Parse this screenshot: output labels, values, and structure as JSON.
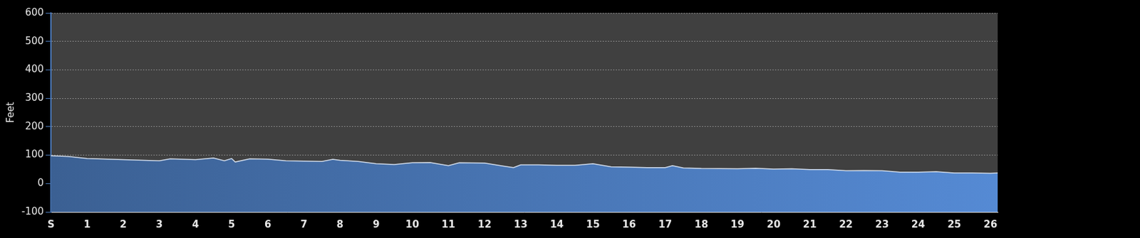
{
  "chart_data": {
    "type": "area",
    "y_label": "Feet",
    "x": [
      0,
      0.5,
      1,
      2,
      3,
      3.3,
      4,
      4.5,
      4.8,
      5,
      5.1,
      5.5,
      6,
      6.5,
      7,
      7.5,
      7.8,
      8,
      8.5,
      9,
      9.5,
      10,
      10.5,
      11,
      11.3,
      12,
      12.5,
      12.8,
      13,
      13.5,
      14,
      14.5,
      15,
      15.5,
      16,
      16.5,
      17,
      17.2,
      17.5,
      18,
      19,
      19.5,
      20,
      20.5,
      21,
      21.5,
      22,
      22.5,
      23,
      23.5,
      24,
      24.5,
      25,
      25.5,
      26,
      26.2
    ],
    "values": [
      98,
      95,
      88,
      84,
      80,
      87,
      84,
      90,
      80,
      88,
      76,
      87,
      86,
      80,
      79,
      78,
      85,
      82,
      78,
      70,
      67,
      73,
      74,
      63,
      73,
      72,
      62,
      56,
      66,
      66,
      64,
      64,
      70,
      59,
      58,
      56,
      56,
      63,
      55,
      53,
      52,
      54,
      51,
      52,
      49,
      49,
      45,
      46,
      45,
      40,
      40,
      42,
      37,
      37,
      36,
      37
    ],
    "color": "#4a78b8",
    "xlim": [
      0,
      26.2
    ],
    "xticks": [
      {
        "value": 0,
        "label": "S"
      },
      1,
      2,
      3,
      4,
      5,
      6,
      7,
      8,
      9,
      10,
      11,
      12,
      13,
      14,
      15,
      16,
      17,
      18,
      19,
      20,
      21,
      22,
      23,
      24,
      25,
      26
    ],
    "ylim": [
      -100,
      600
    ],
    "yticks": [
      -100,
      0,
      100,
      200,
      300,
      400,
      500,
      600
    ],
    "grid": true
  }
}
